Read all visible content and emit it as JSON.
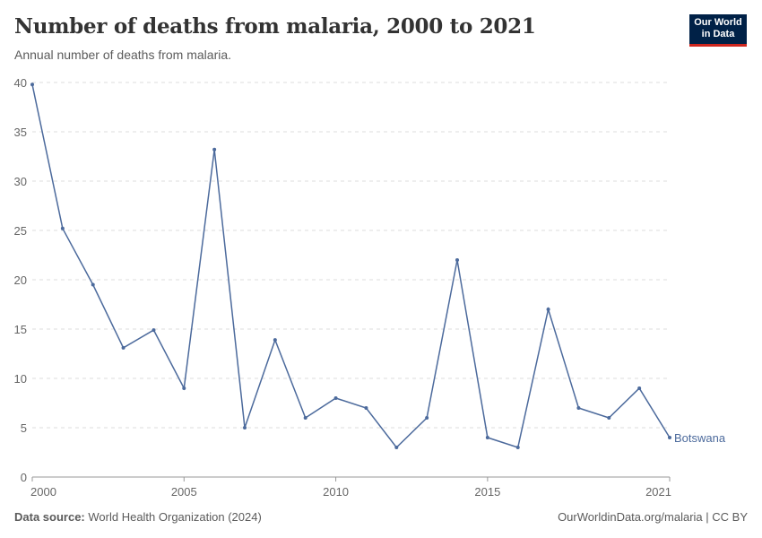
{
  "header": {
    "title": "Number of deaths from malaria, 2000 to 2021",
    "subtitle": "Annual number of deaths from malaria.",
    "logo_line1": "Our World",
    "logo_line2": "in Data"
  },
  "footer": {
    "source_label": "Data source:",
    "source": "World Health Organization (2024)",
    "link": "OurWorldinData.org/malaria | CC BY"
  },
  "chart_data": {
    "type": "line",
    "title": "Number of deaths from malaria, 2000 to 2021",
    "xlim": [
      2000,
      2021
    ],
    "ylim": [
      0,
      40
    ],
    "xticks": [
      2000,
      2005,
      2010,
      2015,
      2021
    ],
    "yticks": [
      0,
      5,
      10,
      15,
      20,
      25,
      30,
      35,
      40
    ],
    "grid": "horizontal dashed",
    "color": "#4c6a9c",
    "series": [
      {
        "name": "Botswana",
        "x": [
          2000,
          2001,
          2002,
          2003,
          2004,
          2005,
          2006,
          2007,
          2008,
          2009,
          2010,
          2011,
          2012,
          2013,
          2014,
          2015,
          2016,
          2017,
          2018,
          2019,
          2020,
          2021
        ],
        "values": [
          39.8,
          25.2,
          19.5,
          13.1,
          14.9,
          9,
          33.2,
          5,
          13.9,
          6,
          8,
          7,
          3,
          6,
          22,
          4,
          3,
          17,
          7,
          6,
          9,
          4
        ]
      }
    ]
  }
}
